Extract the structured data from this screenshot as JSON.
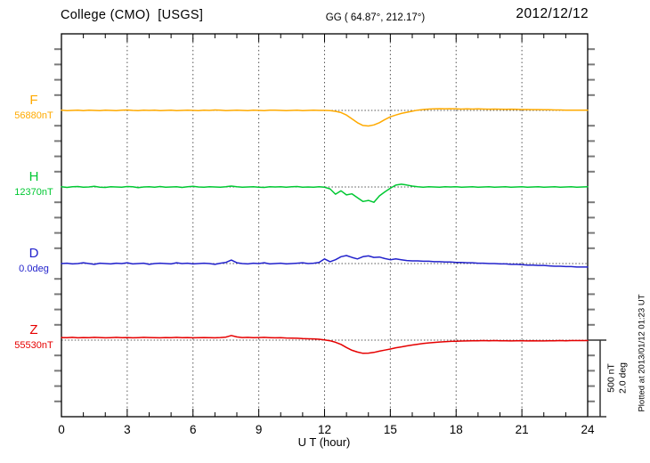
{
  "header": {
    "title": "College (CMO)  [USGS]",
    "coords": "GG ( 64.87°, 212.17°)",
    "date": "2012/12/12"
  },
  "footer": {
    "xlabel": "U T (hour)"
  },
  "annotations": {
    "plotted_at": "Plotted at 2013/01/12 01:23 UT",
    "scale_nT": "500 nT",
    "scale_deg": "2.0 deg"
  },
  "colors": {
    "frame": "#000000",
    "grid": "#555555",
    "side_ticks": "#7a7a7a",
    "scale_bar": "#333333"
  },
  "chart_data": {
    "type": "line",
    "title": "College (CMO)  [USGS]",
    "station": "College (CMO)",
    "source": "USGS",
    "coords_label": "GG ( 64.87°, 212.17°)",
    "date": "2012/12/12",
    "xlabel": "U T (hour)",
    "x_range_hours": [
      0,
      24
    ],
    "x_ticks": [
      0,
      3,
      6,
      9,
      12,
      15,
      18,
      21,
      24
    ],
    "x_step_hours": 0.25,
    "grid": "dotted vertical lines every 3 h; dotted horizontal baseline per channel",
    "legend_position": "left margin channel labels",
    "scale_bar": {
      "label_nT": "500 nT",
      "label_deg": "2.0 deg",
      "span_nT": 500,
      "span_deg": 2.0
    },
    "series": [
      {
        "name": "F",
        "units": "nT",
        "base": "56880nT",
        "color": "#FFAA00",
        "offsets": [
          1,
          -1,
          0,
          2,
          -2,
          1,
          0,
          -1,
          2,
          0,
          -1,
          1,
          3,
          0,
          -2,
          1,
          0,
          2,
          -1,
          0,
          1,
          -2,
          0,
          2,
          0,
          -1,
          1,
          0,
          3,
          1,
          -1,
          0,
          2,
          0,
          -2,
          1,
          0,
          -1,
          1,
          2,
          0,
          -1,
          0,
          1,
          -1,
          0,
          1,
          0,
          0,
          -2,
          -6,
          -14,
          -30,
          -55,
          -80,
          -98,
          -102,
          -95,
          -80,
          -60,
          -42,
          -30,
          -20,
          -12,
          -5,
          2,
          6,
          9,
          10,
          11,
          10,
          11,
          10,
          9,
          10,
          9,
          10,
          9,
          8,
          9,
          8,
          7,
          8,
          7,
          6,
          6,
          5,
          5,
          4,
          4,
          3,
          3,
          2,
          2,
          2,
          1,
          1
        ]
      },
      {
        "name": "H",
        "units": "nT",
        "base": "12370nT",
        "color": "#00C832",
        "offsets": [
          2,
          -3,
          1,
          3,
          -2,
          0,
          4,
          -1,
          -3,
          2,
          0,
          -2,
          3,
          1,
          -4,
          0,
          2,
          -1,
          3,
          -2,
          0,
          1,
          -3,
          2,
          4,
          0,
          -2,
          1,
          0,
          -1,
          2,
          6,
          1,
          -2,
          0,
          2,
          -1,
          -3,
          1,
          0,
          2,
          -2,
          1,
          3,
          -1,
          0,
          -2,
          1,
          -2,
          -12,
          -47,
          -25,
          -52,
          -45,
          -70,
          -95,
          -88,
          -100,
          -58,
          -32,
          -8,
          12,
          18,
          13,
          6,
          2,
          -1,
          1,
          0,
          -2,
          1,
          0,
          2,
          -1,
          0,
          1,
          -1,
          0,
          2,
          -1,
          0,
          1,
          -2,
          0,
          1,
          -1,
          0,
          2,
          -1,
          0,
          1,
          -1,
          0,
          1,
          -1,
          0,
          1
        ]
      },
      {
        "name": "D",
        "units": "deg",
        "base": "0.0deg",
        "color": "#2222CC",
        "offsets": [
          0,
          0.01,
          -0.01,
          0,
          0.02,
          0,
          -0.02,
          0.01,
          0,
          -0.01,
          0.01,
          0,
          0.02,
          -0.01,
          0,
          0.01,
          -0.02,
          0,
          0.01,
          0,
          -0.01,
          0.02,
          0,
          0.01,
          -0.01,
          0,
          0.01,
          0,
          -0.02,
          0.01,
          0.03,
          0.09,
          0.02,
          0,
          -0.01,
          0.01,
          0,
          0.02,
          -0.01,
          0,
          0.01,
          -0.01,
          0,
          0.01,
          0.02,
          0,
          0.01,
          0.03,
          0.12,
          0.05,
          0.1,
          0.18,
          0.21,
          0.16,
          0.12,
          0.18,
          0.2,
          0.16,
          0.17,
          0.13,
          0.1,
          0.12,
          0.1,
          0.08,
          0.07,
          0.07,
          0.06,
          0.06,
          0.05,
          0.05,
          0.04,
          0.04,
          0.03,
          0.03,
          0.02,
          0.02,
          0.01,
          0.01,
          0,
          0,
          -0.01,
          -0.01,
          -0.02,
          -0.02,
          -0.03,
          -0.04,
          -0.04,
          -0.05,
          -0.05,
          -0.06,
          -0.07,
          -0.07,
          -0.08,
          -0.08,
          -0.09,
          -0.09,
          -0.09
        ]
      },
      {
        "name": "Z",
        "units": "nT",
        "base": "55530nT",
        "color": "#E60000",
        "offsets": [
          17,
          16,
          18,
          15,
          17,
          16,
          18,
          17,
          15,
          16,
          18,
          16,
          17,
          15,
          16,
          18,
          17,
          16,
          15,
          17,
          16,
          18,
          16,
          17,
          15,
          16,
          17,
          16,
          15,
          17,
          20,
          30,
          21,
          17,
          18,
          16,
          17,
          18,
          16,
          15,
          16,
          14,
          13,
          12,
          10,
          9,
          8,
          6,
          2,
          -4,
          -14,
          -28,
          -48,
          -66,
          -78,
          -86,
          -85,
          -80,
          -72,
          -65,
          -58,
          -50,
          -44,
          -38,
          -32,
          -27,
          -22,
          -18,
          -15,
          -12,
          -10,
          -8,
          -7,
          -6,
          -5,
          -4,
          -4,
          -3,
          -4,
          -3,
          -4,
          -4,
          -5,
          -4,
          -4,
          -5,
          -4,
          -5,
          -5,
          -4,
          -4,
          -3,
          -4,
          -3,
          -3,
          -3,
          -3
        ]
      }
    ]
  }
}
